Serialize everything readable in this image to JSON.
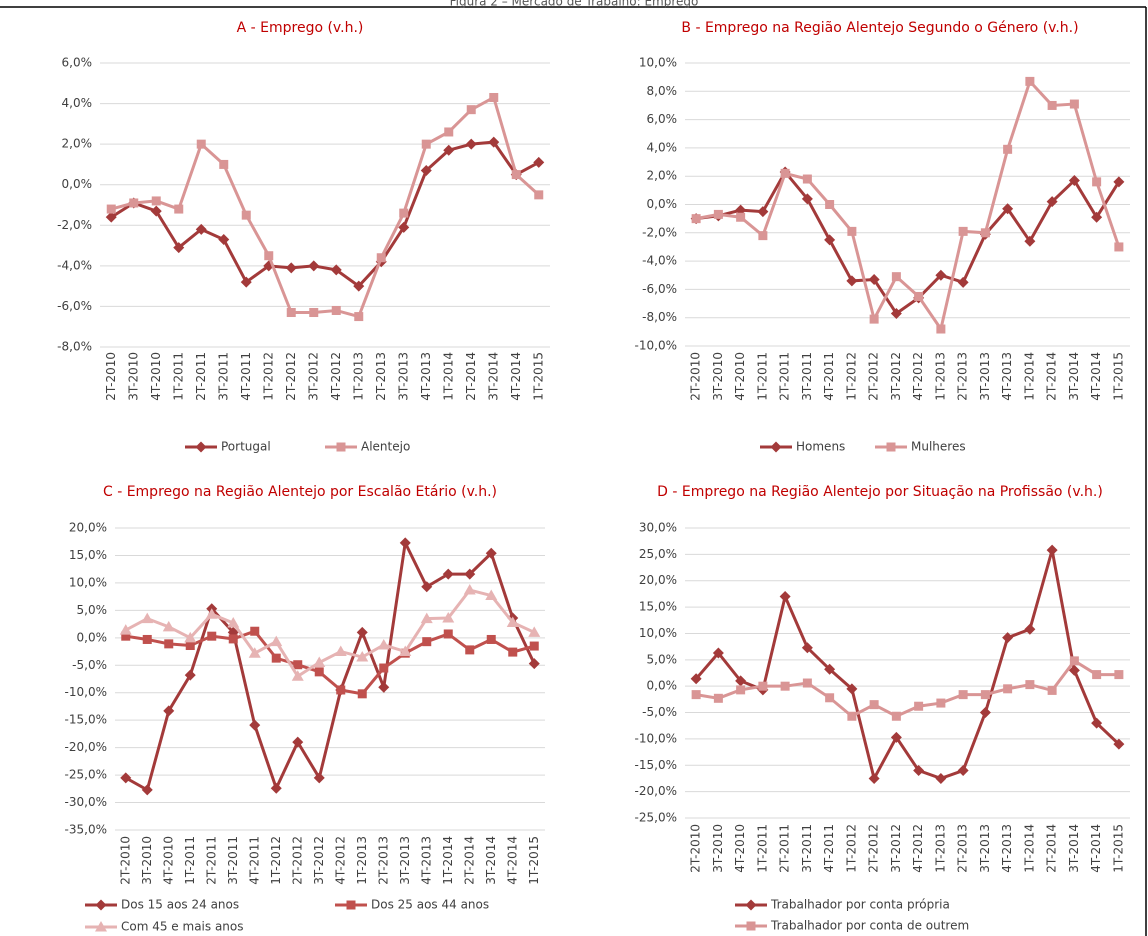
{
  "page_title": "Figura 2 – Mercado de Trabalho: Emprego",
  "chart_data": [
    {
      "type": "line",
      "title": "A - Emprego (v.h.)",
      "categories": [
        "2T-2010",
        "3T-2010",
        "4T-2010",
        "1T-2011",
        "2T-2011",
        "3T-2011",
        "4T-2011",
        "1T-2012",
        "2T-2012",
        "3T-2012",
        "4T-2012",
        "1T-2013",
        "2T-2013",
        "3T-2013",
        "4T-2013",
        "1T-2014",
        "2T-2014",
        "3T-2014",
        "4T-2014",
        "1T-2015"
      ],
      "series": [
        {
          "name": "Portugal",
          "color": "#a33a3a",
          "marker": "diamond",
          "values": [
            -1.6,
            -0.9,
            -1.3,
            -3.1,
            -2.2,
            -2.7,
            -4.8,
            -4.0,
            -4.1,
            -4.0,
            -4.2,
            -5.0,
            -3.8,
            -2.1,
            0.7,
            1.7,
            2.0,
            2.1,
            0.5,
            1.1
          ]
        },
        {
          "name": "Alentejo",
          "color": "#d99595",
          "marker": "square",
          "values": [
            -1.2,
            -0.9,
            -0.8,
            -1.2,
            2.0,
            1.0,
            -1.5,
            -3.5,
            -6.3,
            -6.3,
            -6.2,
            -6.5,
            -3.6,
            -1.4,
            2.0,
            2.6,
            3.7,
            4.3,
            0.5,
            -0.5
          ]
        }
      ],
      "ylim": [
        -8,
        6
      ],
      "yticks": [
        {
          "value": -8,
          "label": "-8,0%"
        },
        {
          "value": -6,
          "label": "-6,0%"
        },
        {
          "value": -4,
          "label": "-4,0%"
        },
        {
          "value": -2,
          "label": "-2,0%"
        },
        {
          "value": 0,
          "label": "0,0%"
        },
        {
          "value": 2,
          "label": "2,0%"
        },
        {
          "value": 4,
          "label": "4,0%"
        },
        {
          "value": 6,
          "label": "6,0%"
        }
      ],
      "grid": true,
      "legend": "bottom"
    },
    {
      "type": "line",
      "title": "B - Emprego na Região Alentejo Segundo o Género (v.h.)",
      "categories": [
        "2T-2010",
        "3T-2010",
        "4T-2010",
        "1T-2011",
        "2T-2011",
        "3T-2011",
        "4T-2011",
        "1T-2012",
        "2T-2012",
        "3T-2012",
        "4T-2012",
        "1T-2013",
        "2T-2013",
        "3T-2013",
        "4T-2013",
        "1T-2014",
        "2T-2014",
        "3T-2014",
        "4T-2014",
        "1T-2015"
      ],
      "series": [
        {
          "name": "Homens",
          "color": "#a33a3a",
          "marker": "diamond",
          "values": [
            -1.0,
            -0.8,
            -0.4,
            -0.5,
            2.3,
            0.4,
            -2.5,
            -5.4,
            -5.3,
            -7.7,
            -6.6,
            -5.0,
            -5.5,
            -2.1,
            -0.3,
            -2.6,
            0.2,
            1.7,
            -0.9,
            1.6
          ]
        },
        {
          "name": "Mulheres",
          "color": "#d99595",
          "marker": "square",
          "values": [
            -1.0,
            -0.7,
            -0.9,
            -2.2,
            2.2,
            1.8,
            0.0,
            -1.9,
            -8.1,
            -5.1,
            -6.5,
            -8.8,
            -1.9,
            -2.0,
            3.9,
            8.7,
            7.0,
            7.1,
            1.6,
            -3.0
          ]
        }
      ],
      "ylim": [
        -10,
        10
      ],
      "yticks": [
        {
          "value": -10,
          "label": "-10,0%"
        },
        {
          "value": -8,
          "label": "-8,0%"
        },
        {
          "value": -6,
          "label": "-6,0%"
        },
        {
          "value": -4,
          "label": "-4,0%"
        },
        {
          "value": -2,
          "label": "-2,0%"
        },
        {
          "value": 0,
          "label": "0,0%"
        },
        {
          "value": 2,
          "label": "2,0%"
        },
        {
          "value": 4,
          "label": "4,0%"
        },
        {
          "value": 6,
          "label": "6,0%"
        },
        {
          "value": 8,
          "label": "8,0%"
        },
        {
          "value": 10,
          "label": "10,0%"
        }
      ],
      "grid": true,
      "legend": "bottom"
    },
    {
      "type": "line",
      "title": "C - Emprego na Região Alentejo por Escalão Etário (v.h.)",
      "categories": [
        "2T-2010",
        "3T-2010",
        "4T-2010",
        "1T-2011",
        "2T-2011",
        "3T-2011",
        "4T-2011",
        "1T-2012",
        "2T-2012",
        "3T-2012",
        "4T-2012",
        "1T-2013",
        "2T-2013",
        "3T-2013",
        "4T-2013",
        "1T-2014",
        "2T-2014",
        "3T-2014",
        "4T-2014",
        "1T-2015"
      ],
      "series": [
        {
          "name": "Dos 15 aos 24 anos",
          "color": "#a33a3a",
          "marker": "diamond",
          "values": [
            -25.5,
            -27.7,
            -13.3,
            -6.8,
            5.3,
            1.0,
            -15.9,
            -27.4,
            -19.0,
            -25.5,
            -9.5,
            1.0,
            -9.0,
            17.3,
            9.3,
            11.6,
            11.6,
            15.4,
            3.6,
            -4.7
          ]
        },
        {
          "name": "Dos 25 aos 44 anos",
          "color": "#c0504d",
          "marker": "square",
          "values": [
            0.3,
            -0.3,
            -1.1,
            -1.4,
            0.3,
            -0.2,
            1.2,
            -3.7,
            -4.9,
            -6.2,
            -9.5,
            -10.2,
            -5.5,
            -2.8,
            -0.7,
            0.7,
            -2.2,
            -0.3,
            -2.6,
            -1.5
          ]
        },
        {
          "name": "Com 45 e mais anos",
          "color": "#e6b3b3",
          "marker": "triangle",
          "values": [
            1.4,
            3.5,
            2.0,
            0.0,
            4.3,
            2.7,
            -2.8,
            -0.7,
            -7.0,
            -4.5,
            -2.5,
            -3.5,
            -1.3,
            -2.5,
            3.5,
            3.6,
            8.7,
            7.7,
            2.8,
            1.0
          ]
        }
      ],
      "ylim": [
        -35,
        20
      ],
      "yticks": [
        {
          "value": -35,
          "label": "-35,0%"
        },
        {
          "value": -30,
          "label": "-30,0%"
        },
        {
          "value": -25,
          "label": "-25,0%"
        },
        {
          "value": -20,
          "label": "-20,0%"
        },
        {
          "value": -15,
          "label": "-15,0%"
        },
        {
          "value": -10,
          "label": "-10,0%"
        },
        {
          "value": -5,
          "label": "-5,0%"
        },
        {
          "value": 0,
          "label": "0,0%"
        },
        {
          "value": 5,
          "label": "5,0%"
        },
        {
          "value": 10,
          "label": "10,0%"
        },
        {
          "value": 15,
          "label": "15,0%"
        },
        {
          "value": 20,
          "label": "20,0%"
        }
      ],
      "grid": true,
      "legend": "bottom"
    },
    {
      "type": "line",
      "title": "D - Emprego na Região Alentejo por Situação na Profissão (v.h.)",
      "categories": [
        "2T-2010",
        "3T-2010",
        "4T-2010",
        "1T-2011",
        "2T-2011",
        "3T-2011",
        "4T-2011",
        "1T-2012",
        "2T-2012",
        "3T-2012",
        "4T-2012",
        "1T-2013",
        "2T-2013",
        "3T-2013",
        "4T-2013",
        "1T-2014",
        "2T-2014",
        "3T-2014",
        "4T-2014",
        "1T-2015"
      ],
      "series": [
        {
          "name": "Trabalhador por conta própria",
          "color": "#a33a3a",
          "marker": "diamond",
          "values": [
            1.4,
            6.3,
            1.0,
            -0.7,
            17.0,
            7.3,
            3.2,
            -0.5,
            -17.5,
            -9.7,
            -16.0,
            -17.5,
            -16.0,
            -5.0,
            9.2,
            10.8,
            25.8,
            3.0,
            -7.0,
            -11.0
          ]
        },
        {
          "name": "Trabalhador por conta de outrem",
          "color": "#d99595",
          "marker": "square",
          "values": [
            -1.6,
            -2.3,
            -0.7,
            0.0,
            0.0,
            0.6,
            -2.2,
            -5.7,
            -3.5,
            -5.7,
            -3.8,
            -3.2,
            -1.6,
            -1.6,
            -0.5,
            0.3,
            -0.8,
            4.8,
            2.2,
            2.2
          ]
        }
      ],
      "ylim": [
        -25,
        30
      ],
      "yticks": [
        {
          "value": -25,
          "label": "-25,0%"
        },
        {
          "value": -20,
          "label": "-20,0%"
        },
        {
          "value": -15,
          "label": "-15,0%"
        },
        {
          "value": -10,
          "label": "-10,0%"
        },
        {
          "value": -5,
          "label": "-5,0%"
        },
        {
          "value": 0,
          "label": "0,0%"
        },
        {
          "value": 5,
          "label": "5,0%"
        },
        {
          "value": 10,
          "label": "10,0%"
        },
        {
          "value": 15,
          "label": "15,0%"
        },
        {
          "value": 20,
          "label": "20,0%"
        },
        {
          "value": 25,
          "label": "25,0%"
        },
        {
          "value": 30,
          "label": "30,0%"
        }
      ],
      "grid": true,
      "legend": "bottom"
    }
  ]
}
